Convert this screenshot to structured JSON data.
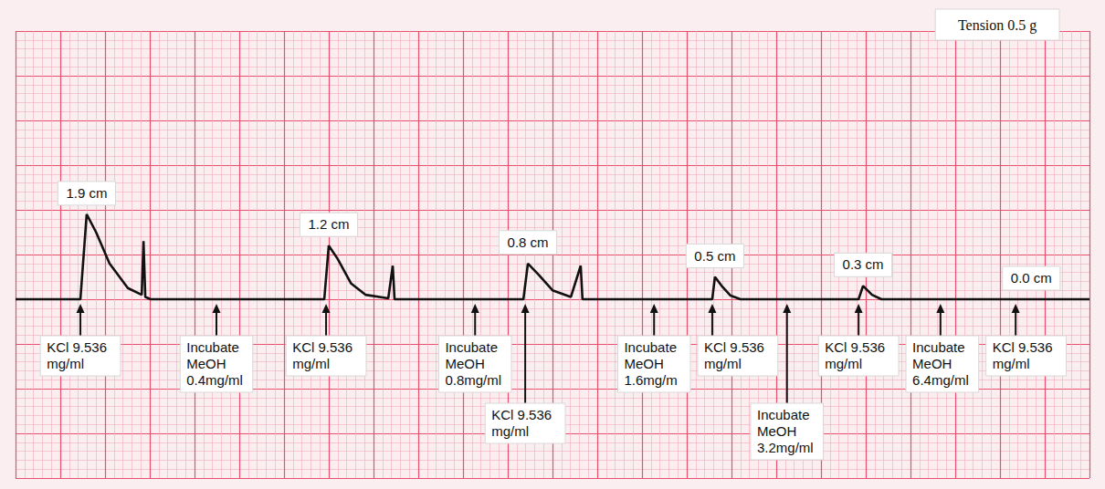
{
  "chart_data": {
    "type": "line",
    "note": "Tension 0.5 g",
    "x": [
      0,
      1.45,
      1.59,
      1.8,
      2.1,
      2.51,
      2.82,
      2.86,
      2.9,
      3.02,
      6.9,
      7.0,
      7.2,
      7.5,
      7.82,
      8.33,
      8.43,
      8.47,
      11.35,
      11.45,
      11.69,
      12.0,
      12.41,
      12.63,
      12.67,
      15.57,
      15.63,
      15.78,
      15.98,
      16.2,
      18.84,
      18.94,
      19.14,
      19.35,
      24
    ],
    "values": [
      0,
      0,
      1.9,
      1.5,
      0.8,
      0.25,
      0.1,
      1.3,
      0.05,
      0,
      0,
      1.2,
      0.9,
      0.35,
      0.1,
      0.02,
      0.75,
      0,
      0,
      0.8,
      0.55,
      0.2,
      0.05,
      0.75,
      0,
      0,
      0.5,
      0.3,
      0.08,
      0,
      0,
      0.3,
      0.1,
      0,
      0
    ],
    "color": "#111111",
    "xlim": [
      0,
      24
    ],
    "xticks": [
      0,
      1,
      2,
      3,
      4,
      5,
      6,
      7,
      8,
      9,
      10,
      11,
      12,
      13,
      14,
      15,
      16,
      17,
      18,
      19,
      20,
      21,
      22,
      23,
      24
    ],
    "ylim": [
      -4,
      6
    ],
    "yticks": [
      -4,
      -3,
      -2,
      -1,
      0,
      1,
      2,
      3,
      4,
      5,
      6
    ],
    "grid": true,
    "tick_labels": false,
    "peak_labels": [
      {
        "x": 1.59,
        "value": 1.9,
        "label": "1.9 cm"
      },
      {
        "x": 7.0,
        "value": 1.2,
        "label": "1.2 cm"
      },
      {
        "x": 11.45,
        "value": 0.8,
        "label": "0.8 cm"
      },
      {
        "x": 15.63,
        "value": 0.5,
        "label": "0.5 cm"
      },
      {
        "x": 18.94,
        "value": 0.3,
        "label": "0.3 cm"
      },
      {
        "x": 22.7,
        "value": 0,
        "label": "0.0 cm"
      }
    ],
    "events": [
      {
        "x": 1.45,
        "text": "KCl 9.536 mg/ml"
      },
      {
        "x": 4.49,
        "text": "Incubate MeOH 0.4mg/ml"
      },
      {
        "x": 6.94,
        "text": "KCl 9.536 mg/ml"
      },
      {
        "x": 10.27,
        "text": "Incubate MeOH 0.8mg/ml"
      },
      {
        "x": 11.39,
        "text": "KCl 9.536 mg/ml"
      },
      {
        "x": 14.27,
        "text": "Incubate MeOH 1.6mg/m"
      },
      {
        "x": 15.57,
        "text": "KCl 9.536 mg/ml"
      },
      {
        "x": 17.24,
        "text": "Incubate MeOH 3.2mg/ml"
      },
      {
        "x": 18.84,
        "text": "KCl 9.536 mg/ml"
      },
      {
        "x": 20.67,
        "text": "Incubate MeOH 6.4mg/ml"
      },
      {
        "x": 22.35,
        "text": "KCl 9.536 mg/ml"
      }
    ]
  }
}
